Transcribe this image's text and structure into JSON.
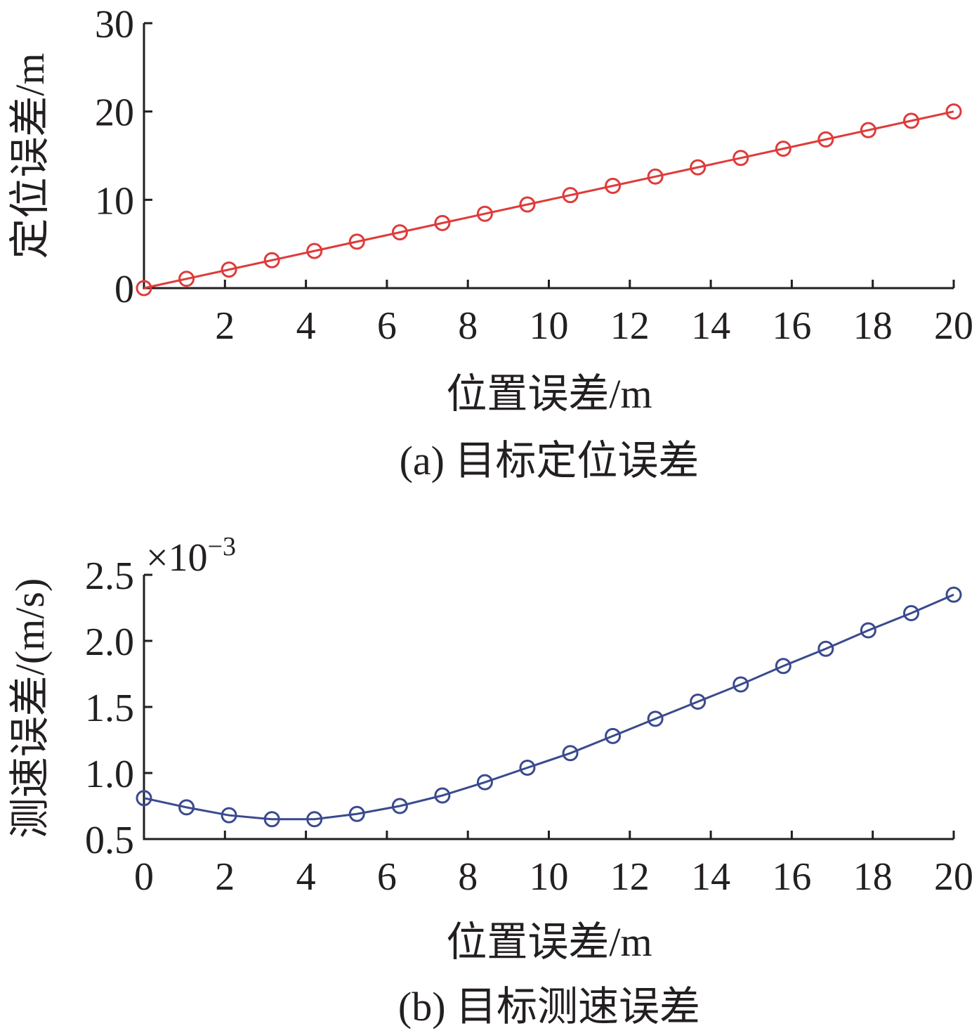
{
  "chart_data": [
    {
      "type": "line",
      "caption": "(a) 目标定位误差",
      "xlabel": "位置误差/m",
      "ylabel": "定位误差/m",
      "xlim": [
        0,
        20
      ],
      "ylim": [
        0,
        30
      ],
      "xticks": [
        2,
        4,
        6,
        8,
        10,
        12,
        14,
        16,
        18,
        20
      ],
      "yticks": [
        0,
        10,
        20,
        30
      ],
      "ytick_labels": [
        "0",
        "10",
        "20",
        "30"
      ],
      "grid": false,
      "marker": "circle",
      "color": "#e03a3a",
      "series": [
        {
          "x": [
            0,
            1.05,
            2.1,
            3.16,
            4.21,
            5.26,
            6.32,
            7.37,
            8.42,
            9.47,
            10.53,
            11.58,
            12.63,
            13.68,
            14.74,
            15.79,
            16.84,
            17.89,
            18.95,
            20
          ],
          "y": [
            0,
            1.05,
            2.1,
            3.16,
            4.21,
            5.26,
            6.32,
            7.37,
            8.42,
            9.47,
            10.53,
            11.58,
            12.63,
            13.68,
            14.74,
            15.79,
            16.84,
            17.89,
            18.95,
            20
          ]
        }
      ]
    },
    {
      "type": "line",
      "caption": "(b) 目标测速误差",
      "xlabel": "位置误差/m",
      "ylabel": "测速误差/(m/s)",
      "xlim": [
        0,
        20
      ],
      "ylim": [
        0.5,
        2.5
      ],
      "xticks": [
        0,
        2,
        4,
        6,
        8,
        10,
        12,
        14,
        16,
        18,
        20
      ],
      "yticks": [
        0.5,
        1.0,
        1.5,
        2.0,
        2.5
      ],
      "ytick_labels": [
        "0.5",
        "1.0",
        "1.5",
        "2.0",
        "2.5"
      ],
      "y_multiplier": "×10",
      "y_multiplier_exp": "−3",
      "grid": false,
      "marker": "circle",
      "color": "#3a4a8e",
      "series": [
        {
          "x": [
            0,
            1.05,
            2.1,
            3.16,
            4.21,
            5.26,
            6.32,
            7.37,
            8.42,
            9.47,
            10.53,
            11.58,
            12.63,
            13.68,
            14.74,
            15.79,
            16.84,
            17.89,
            18.95,
            20
          ],
          "y": [
            0.81,
            0.74,
            0.68,
            0.65,
            0.65,
            0.69,
            0.75,
            0.83,
            0.93,
            1.04,
            1.15,
            1.28,
            1.41,
            1.54,
            1.67,
            1.81,
            1.94,
            2.08,
            2.21,
            2.35
          ]
        }
      ]
    }
  ]
}
